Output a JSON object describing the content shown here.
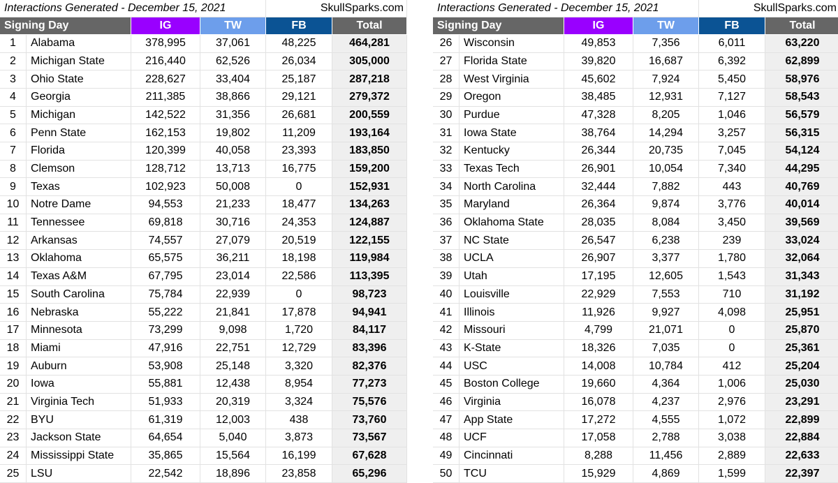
{
  "tables": [
    {
      "title": "Interactions Generated - December 15, 2021",
      "source": "SkullSparks.com",
      "headers": [
        "Signing Day",
        "IG",
        "TW",
        "FB",
        "Total"
      ],
      "rows": [
        [
          "1",
          "Alabama",
          "378,995",
          "37,061",
          "48,225",
          "464,281"
        ],
        [
          "2",
          "Michigan State",
          "216,440",
          "62,526",
          "26,034",
          "305,000"
        ],
        [
          "3",
          "Ohio State",
          "228,627",
          "33,404",
          "25,187",
          "287,218"
        ],
        [
          "4",
          "Georgia",
          "211,385",
          "38,866",
          "29,121",
          "279,372"
        ],
        [
          "5",
          "Michigan",
          "142,522",
          "31,356",
          "26,681",
          "200,559"
        ],
        [
          "6",
          "Penn State",
          "162,153",
          "19,802",
          "11,209",
          "193,164"
        ],
        [
          "7",
          "Florida",
          "120,399",
          "40,058",
          "23,393",
          "183,850"
        ],
        [
          "8",
          "Clemson",
          "128,712",
          "13,713",
          "16,775",
          "159,200"
        ],
        [
          "9",
          "Texas",
          "102,923",
          "50,008",
          "0",
          "152,931"
        ],
        [
          "10",
          "Notre Dame",
          "94,553",
          "21,233",
          "18,477",
          "134,263"
        ],
        [
          "11",
          "Tennessee",
          "69,818",
          "30,716",
          "24,353",
          "124,887"
        ],
        [
          "12",
          "Arkansas",
          "74,557",
          "27,079",
          "20,519",
          "122,155"
        ],
        [
          "13",
          "Oklahoma",
          "65,575",
          "36,211",
          "18,198",
          "119,984"
        ],
        [
          "14",
          "Texas A&M",
          "67,795",
          "23,014",
          "22,586",
          "113,395"
        ],
        [
          "15",
          "South Carolina",
          "75,784",
          "22,939",
          "0",
          "98,723"
        ],
        [
          "16",
          "Nebraska",
          "55,222",
          "21,841",
          "17,878",
          "94,941"
        ],
        [
          "17",
          "Minnesota",
          "73,299",
          "9,098",
          "1,720",
          "84,117"
        ],
        [
          "18",
          "Miami",
          "47,916",
          "22,751",
          "12,729",
          "83,396"
        ],
        [
          "19",
          "Auburn",
          "53,908",
          "25,148",
          "3,320",
          "82,376"
        ],
        [
          "20",
          "Iowa",
          "55,881",
          "12,438",
          "8,954",
          "77,273"
        ],
        [
          "21",
          "Virginia Tech",
          "51,933",
          "20,319",
          "3,324",
          "75,576"
        ],
        [
          "22",
          "BYU",
          "61,319",
          "12,003",
          "438",
          "73,760"
        ],
        [
          "23",
          "Jackson State",
          "64,654",
          "5,040",
          "3,873",
          "73,567"
        ],
        [
          "24",
          "Mississippi State",
          "35,865",
          "15,564",
          "16,199",
          "67,628"
        ],
        [
          "25",
          "LSU",
          "22,542",
          "18,896",
          "23,858",
          "65,296"
        ]
      ]
    },
    {
      "title": "Interactions Generated - December 15, 2021",
      "source": "SkullSparks.com",
      "headers": [
        "Signing Day",
        "IG",
        "TW",
        "FB",
        "Total"
      ],
      "rows": [
        [
          "26",
          "Wisconsin",
          "49,853",
          "7,356",
          "6,011",
          "63,220"
        ],
        [
          "27",
          "Florida State",
          "39,820",
          "16,687",
          "6,392",
          "62,899"
        ],
        [
          "28",
          "West Virginia",
          "45,602",
          "7,924",
          "5,450",
          "58,976"
        ],
        [
          "29",
          "Oregon",
          "38,485",
          "12,931",
          "7,127",
          "58,543"
        ],
        [
          "30",
          "Purdue",
          "47,328",
          "8,205",
          "1,046",
          "56,579"
        ],
        [
          "31",
          "Iowa State",
          "38,764",
          "14,294",
          "3,257",
          "56,315"
        ],
        [
          "32",
          "Kentucky",
          "26,344",
          "20,735",
          "7,045",
          "54,124"
        ],
        [
          "33",
          "Texas Tech",
          "26,901",
          "10,054",
          "7,340",
          "44,295"
        ],
        [
          "34",
          "North Carolina",
          "32,444",
          "7,882",
          "443",
          "40,769"
        ],
        [
          "35",
          "Maryland",
          "26,364",
          "9,874",
          "3,776",
          "40,014"
        ],
        [
          "36",
          "Oklahoma State",
          "28,035",
          "8,084",
          "3,450",
          "39,569"
        ],
        [
          "37",
          "NC State",
          "26,547",
          "6,238",
          "239",
          "33,024"
        ],
        [
          "38",
          "UCLA",
          "26,907",
          "3,377",
          "1,780",
          "32,064"
        ],
        [
          "39",
          "Utah",
          "17,195",
          "12,605",
          "1,543",
          "31,343"
        ],
        [
          "40",
          "Louisville",
          "22,929",
          "7,553",
          "710",
          "31,192"
        ],
        [
          "41",
          "Illinois",
          "11,926",
          "9,927",
          "4,098",
          "25,951"
        ],
        [
          "42",
          "Missouri",
          "4,799",
          "21,071",
          "0",
          "25,870"
        ],
        [
          "43",
          "K-State",
          "18,326",
          "7,035",
          "0",
          "25,361"
        ],
        [
          "44",
          "USC",
          "14,008",
          "10,784",
          "412",
          "25,204"
        ],
        [
          "45",
          "Boston College",
          "19,660",
          "4,364",
          "1,006",
          "25,030"
        ],
        [
          "46",
          "Virginia",
          "16,078",
          "4,237",
          "2,976",
          "23,291"
        ],
        [
          "47",
          "App State",
          "17,272",
          "4,555",
          "1,072",
          "22,899"
        ],
        [
          "48",
          "UCF",
          "17,058",
          "2,788",
          "3,038",
          "22,884"
        ],
        [
          "49",
          "Cincinnati",
          "8,288",
          "11,456",
          "2,889",
          "22,633"
        ],
        [
          "50",
          "TCU",
          "15,929",
          "4,869",
          "1,599",
          "22,397"
        ]
      ]
    }
  ]
}
